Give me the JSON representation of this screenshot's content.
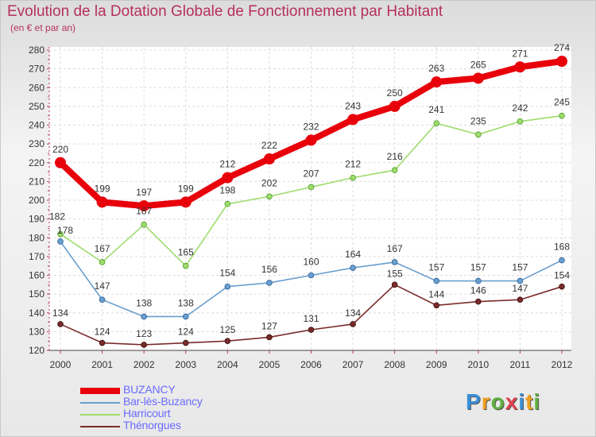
{
  "header": {
    "title": "Evolution de la Dotation Globale de Fonctionnement par Habitant",
    "subtitle": "(en € et par an)"
  },
  "logo": {
    "letters": [
      "P",
      "r",
      "o",
      "x",
      "i",
      "t",
      "i"
    ],
    "colors": [
      "#3a8fd8",
      "#f0a020",
      "#60b040",
      "#e04050",
      "#3a8fd8",
      "#f0a020",
      "#60b040"
    ]
  },
  "chart_data": {
    "type": "line",
    "title": "Evolution de la Dotation Globale de Fonctionnement par Habitant",
    "subtitle": "(en € et par an)",
    "xlabel": "",
    "ylabel": "",
    "ylim": [
      120,
      280
    ],
    "yticks": [
      "120",
      "130",
      "140",
      "150",
      "160",
      "170",
      "180",
      "190",
      "200",
      "210",
      "220",
      "230",
      "240",
      "250",
      "260",
      "270",
      "280"
    ],
    "categories": [
      "2000",
      "2001",
      "2002",
      "2003",
      "2004",
      "2005",
      "2006",
      "2007",
      "2008",
      "2009",
      "2010",
      "2011",
      "2012"
    ],
    "grid": true,
    "legend_position": "bottom-left",
    "series": [
      {
        "name": "BUZANCY",
        "color": "#e8000b",
        "labelColor": "#333333",
        "legendColor": "#6b6bff",
        "width": 8,
        "marker": 7,
        "values": [
          220,
          199,
          197,
          199,
          212,
          222,
          232,
          243,
          250,
          263,
          265,
          271,
          274
        ],
        "labels": [
          "220",
          "199",
          "197",
          "199",
          "212",
          "222",
          "232",
          "243",
          "250",
          "263",
          "265",
          "271",
          "274"
        ]
      },
      {
        "name": "Bar-lès-Buzancy",
        "color": "#6a9fce",
        "labelColor": "#333333",
        "legendColor": "#6b6bff",
        "width": 1.6,
        "marker": 3.4,
        "values": [
          178,
          147,
          138,
          138,
          154,
          156,
          160,
          164,
          167,
          157,
          157,
          157,
          168
        ],
        "labels": [
          "178",
          "147",
          "138",
          "138",
          "154",
          "156",
          "160",
          "164",
          "167",
          "157",
          "157",
          "157",
          "168"
        ]
      },
      {
        "name": "Harricourt",
        "color": "#9edc6c",
        "labelColor": "#333333",
        "legendColor": "#6b6bff",
        "width": 1.6,
        "marker": 3.4,
        "values": [
          182,
          167,
          187,
          165,
          198,
          202,
          207,
          212,
          216,
          241,
          235,
          242,
          245
        ],
        "labels": [
          "182",
          "167",
          "187",
          "165",
          "198",
          "202",
          "207",
          "212",
          "216",
          "241",
          "235",
          "242",
          "245"
        ]
      },
      {
        "name": "Thénorgues",
        "color": "#7a2a2a",
        "labelColor": "#333333",
        "legendColor": "#6b6bff",
        "width": 1.6,
        "marker": 3.4,
        "values": [
          134,
          124,
          123,
          124,
          125,
          127,
          131,
          134,
          155,
          144,
          146,
          147,
          154
        ],
        "labels": [
          "134",
          "124",
          "123",
          "124",
          "125",
          "127",
          "131",
          "134",
          "155",
          "144",
          "146",
          "147",
          "154"
        ]
      }
    ]
  }
}
